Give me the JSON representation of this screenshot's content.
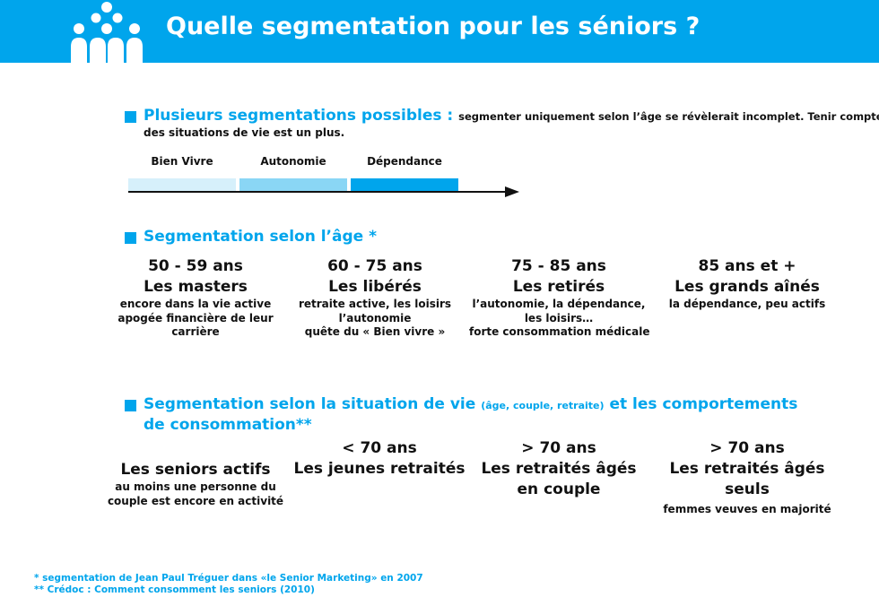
{
  "header": {
    "title": "Quelle segmentation pour les séniors ?"
  },
  "section1": {
    "heading": "Plusieurs segmentations possibles :",
    "text_line1": "segmenter uniquement selon l’âge se révèlerait incomplet. Tenir compte",
    "text_line2": "des situations de vie est un plus.",
    "segments": [
      {
        "label": "Bien Vivre",
        "color": "#d6f0fb"
      },
      {
        "label": "Autonomie",
        "color": "#8ad6f5"
      },
      {
        "label": "Dépendance",
        "color": "#00a5ec"
      }
    ]
  },
  "section2": {
    "heading": "Segmentation selon l’âge *",
    "columns": [
      {
        "age": "50 - 59 ans",
        "name": "Les masters",
        "desc": [
          "encore dans la vie active",
          "apogée financière de leur",
          "carrière"
        ]
      },
      {
        "age": "60 - 75 ans",
        "name": "Les libérés",
        "desc": [
          "retraite active, les loisirs",
          "l’autonomie",
          "quête du « Bien vivre »"
        ]
      },
      {
        "age": "75 - 85 ans",
        "name": "Les retirés",
        "desc": [
          "l’autonomie, la dépendance,",
          "les loisirs…",
          "forte consommation médicale"
        ]
      },
      {
        "age": "85 ans et +",
        "name": "Les grands aînés",
        "desc": [
          "la dépendance, peu actifs"
        ]
      }
    ]
  },
  "section3": {
    "heading_part1": "Segmentation selon la situation de vie",
    "heading_small": "(âge, couple, retraite)",
    "heading_part2": "et les comportements",
    "heading_line2": "de consommation**",
    "columns": [
      {
        "age": "",
        "name": [
          "Les seniors actifs"
        ],
        "desc": [
          "au moins une personne du",
          "couple est encore en activité"
        ]
      },
      {
        "age": "< 70 ans",
        "name": [
          "Les jeunes retraités"
        ],
        "desc": []
      },
      {
        "age": "> 70 ans",
        "name": [
          "Les retraités âgés",
          "en couple"
        ],
        "desc": []
      },
      {
        "age": "> 70 ans",
        "name": [
          "Les retraités âgés",
          "seuls"
        ],
        "desc": [
          "femmes veuves en majorité"
        ]
      }
    ]
  },
  "footnotes": [
    "* segmentation de Jean Paul Tréguer dans «le Senior Marketing» en 2007",
    "** Crédoc : Comment consomment les seniors (2010)"
  ],
  "colors": {
    "accent": "#00a5ec"
  }
}
